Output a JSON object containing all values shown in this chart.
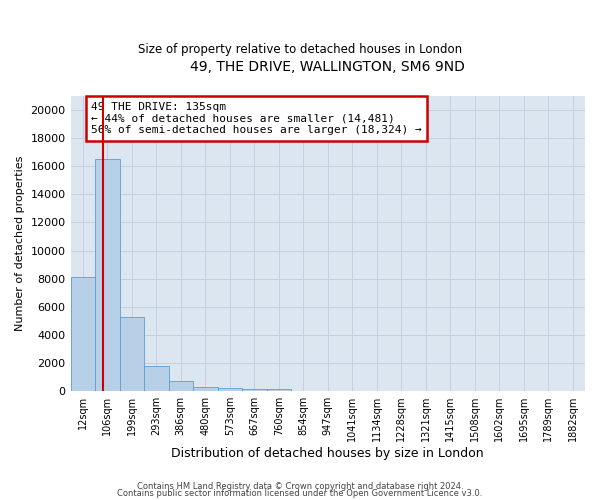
{
  "title": "49, THE DRIVE, WALLINGTON, SM6 9ND",
  "subtitle": "Size of property relative to detached houses in London",
  "xlabel": "Distribution of detached houses by size in London",
  "ylabel": "Number of detached properties",
  "annotation_line1": "49 THE DRIVE: 135sqm",
  "annotation_line2": "← 44% of detached houses are smaller (14,481)",
  "annotation_line3": "56% of semi-detached houses are larger (18,324) →",
  "bar_labels": [
    "12sqm",
    "106sqm",
    "199sqm",
    "293sqm",
    "386sqm",
    "480sqm",
    "573sqm",
    "667sqm",
    "760sqm",
    "854sqm",
    "947sqm",
    "1041sqm",
    "1134sqm",
    "1228sqm",
    "1321sqm",
    "1415sqm",
    "1508sqm",
    "1602sqm",
    "1695sqm",
    "1789sqm",
    "1882sqm"
  ],
  "bar_values": [
    8100,
    16500,
    5300,
    1750,
    700,
    320,
    200,
    175,
    150,
    0,
    0,
    0,
    0,
    0,
    0,
    0,
    0,
    0,
    0,
    0,
    0
  ],
  "bar_color": "#b8cfe8",
  "bar_edge_color": "#5a9fd4",
  "vline_color": "#cc0000",
  "grid_color": "#c5cfe0",
  "bg_color": "#dce6f0",
  "annotation_box_color": "#cc0000",
  "ylim": [
    0,
    21000
  ],
  "yticks": [
    0,
    2000,
    4000,
    6000,
    8000,
    10000,
    12000,
    14000,
    16000,
    18000,
    20000
  ],
  "footer_line1": "Contains HM Land Registry data © Crown copyright and database right 2024.",
  "footer_line2": "Contains public sector information licensed under the Open Government Licence v3.0."
}
